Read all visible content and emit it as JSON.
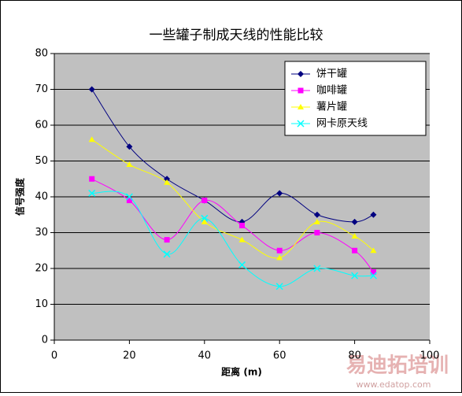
{
  "chart_data": {
    "type": "line",
    "title": "一些罐子制成天线的性能比较",
    "x_label": "距离 (m)",
    "y_label": "信号强度",
    "x": [
      10,
      20,
      30,
      40,
      50,
      60,
      70,
      80,
      85
    ],
    "series": [
      {
        "name": "饼干罐",
        "color": "#000080",
        "marker": "diamond",
        "values": [
          70,
          54,
          45,
          39,
          33,
          41,
          35,
          33,
          35
        ]
      },
      {
        "name": "咖啡罐",
        "color": "#ff00ff",
        "marker": "square",
        "values": [
          45,
          39,
          28,
          39,
          32,
          25,
          30,
          25,
          19
        ]
      },
      {
        "name": "薯片罐",
        "color": "#ffff00",
        "marker": "triangle",
        "values": [
          56,
          49,
          44,
          33,
          28,
          23,
          33,
          29,
          25
        ]
      },
      {
        "name": "网卡原天线",
        "color": "#00ffff",
        "marker": "x",
        "values": [
          41,
          40,
          24,
          34,
          21,
          15,
          20,
          18,
          18
        ]
      }
    ],
    "xlim": [
      0,
      100
    ],
    "xticks": [
      0,
      20,
      40,
      60,
      80,
      100
    ],
    "ylim": [
      0,
      80
    ],
    "yticks": [
      0,
      10,
      20,
      30,
      40,
      50,
      60,
      70,
      80
    ],
    "grid": true,
    "smooth": true,
    "legend": "top-right",
    "watermark": "易迪拓培训",
    "watermark_url": "www.edatop.com"
  }
}
